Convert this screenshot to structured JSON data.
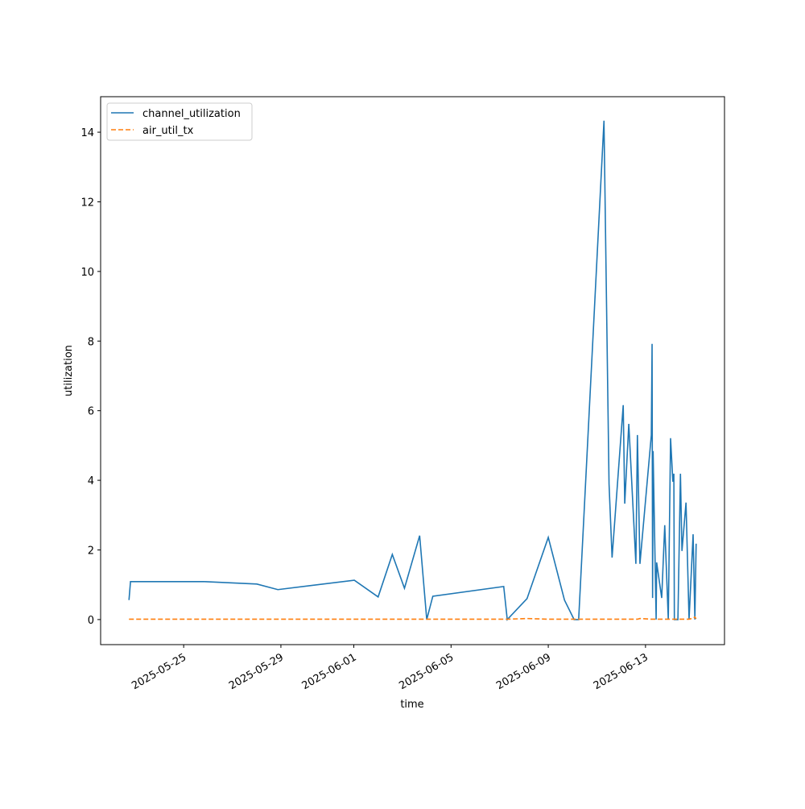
{
  "chart_data": {
    "type": "line",
    "xlabel": "time",
    "ylabel": "utilization",
    "x": [
      "2025-05-22T18:00",
      "2025-05-22T19:30",
      "2025-05-25T20:00",
      "2025-05-28T00:15",
      "2025-05-28T21:00",
      "2025-06-01T00:30",
      "2025-06-02T00:00",
      "2025-06-02T14:00",
      "2025-06-03T02:00",
      "2025-06-03T17:00",
      "2025-06-04T00:00",
      "2025-06-04T06:00",
      "2025-06-07T04:00",
      "2025-06-07T07:30",
      "2025-06-08T03:00",
      "2025-06-09T00:00",
      "2025-06-09T16:00",
      "2025-06-10T01:30",
      "2025-06-10T06:00",
      "2025-06-11T07:00",
      "2025-06-11T12:00",
      "2025-06-11T15:00",
      "2025-06-12T02:00",
      "2025-06-12T03:30",
      "2025-06-12T07:30",
      "2025-06-12T14:30",
      "2025-06-12T16:00",
      "2025-06-12T18:30",
      "2025-06-13T05:45",
      "2025-06-13T06:30",
      "2025-06-13T07:00",
      "2025-06-13T07:30",
      "2025-06-13T10:30",
      "2025-06-13T11:00",
      "2025-06-13T16:00",
      "2025-06-13T19:00",
      "2025-06-13T22:30",
      "2025-06-14T00:45",
      "2025-06-14T03:00",
      "2025-06-14T04:00",
      "2025-06-14T04:30",
      "2025-06-14T08:00",
      "2025-06-14T10:30",
      "2025-06-14T12:00",
      "2025-06-14T16:00",
      "2025-06-14T19:00",
      "2025-06-14T23:00",
      "2025-06-15T00:45",
      "2025-06-15T02:00"
    ],
    "series": [
      {
        "name": "channel_utilization",
        "color": "#1f77b4",
        "dash": false,
        "values": [
          0.56,
          1.09,
          1.09,
          1.02,
          0.86,
          1.13,
          0.65,
          1.87,
          0.9,
          2.41,
          0,
          0.67,
          0.95,
          0,
          0.6,
          2.36,
          0.56,
          0,
          0,
          14.33,
          3.9,
          1.78,
          6.16,
          3.33,
          5.62,
          1.6,
          5.3,
          1.6,
          5.3,
          7.92,
          0.62,
          4.84,
          0,
          1.64,
          0.62,
          2.71,
          0,
          5.21,
          3.96,
          4.19,
          0,
          0,
          4.19,
          1.97,
          3.36,
          0,
          2.45,
          0,
          2.18
        ]
      },
      {
        "name": "air_util_tx",
        "color": "#ff7f0e",
        "dash": true,
        "values": [
          0.01,
          0.01,
          0.01,
          0.01,
          0.01,
          0.01,
          0.01,
          0.01,
          0.01,
          0.01,
          0.01,
          0.01,
          0.01,
          0.01,
          0.03,
          0.01,
          0.01,
          0.01,
          0.01,
          0.01,
          0.01,
          0.01,
          0.01,
          0.01,
          0.01,
          0.01,
          0.01,
          0.03,
          0.01,
          0.01,
          0.01,
          0.01,
          0.01,
          0.01,
          0.01,
          0.01,
          0.01,
          0.01,
          0.01,
          0.01,
          0.01,
          0.01,
          0.01,
          0.01,
          0.01,
          0.01,
          0.04,
          0.07,
          0.02
        ]
      }
    ],
    "xlim": [
      "2025-05-21T14:00",
      "2025-06-16T06:00"
    ],
    "xticks": [
      "2025-05-25",
      "2025-05-29",
      "2025-06-01",
      "2025-06-05",
      "2025-06-09",
      "2025-06-13"
    ],
    "ylim": [
      -0.72,
      15.02
    ],
    "yticks": [
      0,
      2,
      4,
      6,
      8,
      10,
      12,
      14
    ],
    "legend": "upper left"
  }
}
